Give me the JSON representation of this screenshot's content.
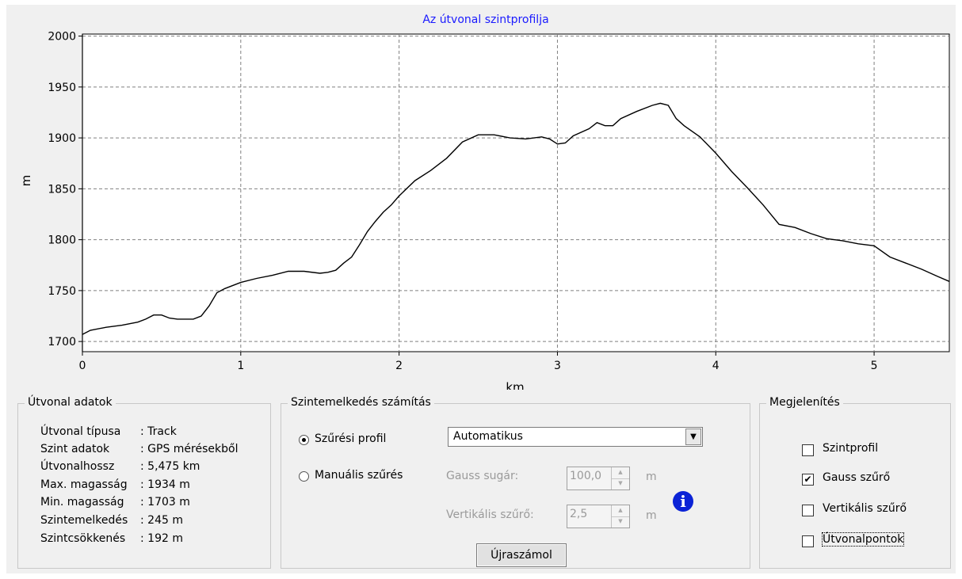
{
  "chart": {
    "title": "Az útvonal szintprofilja",
    "xlabel": "km",
    "ylabel": "m",
    "title_color": "#1a1aff"
  },
  "chart_data": {
    "type": "line",
    "title": "Az útvonal szintprofilja",
    "xlabel": "km",
    "ylabel": "m",
    "xlim": [
      0,
      5.475
    ],
    "ylim": [
      1690,
      2002
    ],
    "x_ticks": [
      "0",
      "1",
      "2",
      "3",
      "4",
      "5"
    ],
    "y_ticks": [
      "1700",
      "1750",
      "1800",
      "1850",
      "1900",
      "1950",
      "2000"
    ],
    "grid": true,
    "series": [
      {
        "color": "#000000",
        "x": [
          0,
          0.05,
          0.15,
          0.25,
          0.35,
          0.4,
          0.45,
          0.5,
          0.55,
          0.6,
          0.7,
          0.75,
          0.8,
          0.85,
          0.9,
          1.0,
          1.1,
          1.2,
          1.3,
          1.4,
          1.5,
          1.55,
          1.6,
          1.65,
          1.7,
          1.75,
          1.8,
          1.85,
          1.9,
          1.95,
          2.0,
          2.1,
          2.2,
          2.3,
          2.4,
          2.5,
          2.6,
          2.7,
          2.8,
          2.9,
          2.95,
          3.0,
          3.05,
          3.1,
          3.2,
          3.25,
          3.3,
          3.35,
          3.4,
          3.5,
          3.6,
          3.65,
          3.7,
          3.75,
          3.8,
          3.9,
          4.0,
          4.1,
          4.2,
          4.3,
          4.4,
          4.5,
          4.6,
          4.7,
          4.8,
          4.9,
          5.0,
          5.1,
          5.2,
          5.3,
          5.4,
          5.475
        ],
        "y": [
          1707,
          1711,
          1714,
          1716,
          1719,
          1722,
          1726,
          1726,
          1723,
          1722,
          1722,
          1725,
          1735,
          1748,
          1752,
          1758,
          1762,
          1765,
          1769,
          1769,
          1767,
          1768,
          1770,
          1777,
          1783,
          1795,
          1808,
          1818,
          1827,
          1834,
          1843,
          1858,
          1868,
          1880,
          1896,
          1903,
          1903,
          1900,
          1899,
          1901,
          1899,
          1894,
          1895,
          1902,
          1909,
          1915,
          1912,
          1912,
          1919,
          1926,
          1932,
          1934,
          1932,
          1919,
          1912,
          1901,
          1885,
          1867,
          1851,
          1834,
          1815,
          1812,
          1806,
          1801,
          1799,
          1796,
          1794,
          1783,
          1777,
          1771,
          1764,
          1759
        ]
      }
    ]
  },
  "utvonal_adatok": {
    "title": "Útvonal adatok",
    "rows": [
      {
        "key": "Útvonal típusa",
        "value": ": Track"
      },
      {
        "key": "Szint adatok",
        "value": ": GPS mérésekből"
      },
      {
        "key": "Útvonalhossz",
        "value": ": 5,475 km"
      },
      {
        "key": "Max. magasság",
        "value": ": 1934 m"
      },
      {
        "key": "Min. magasság",
        "value": ": 1703 m"
      },
      {
        "key": "Szintemelkedés",
        "value": ": 245 m"
      },
      {
        "key": "Szintcsökkenés",
        "value": ": 192 m"
      }
    ]
  },
  "szintemelkedes": {
    "title": "Szintemelkedés számítás",
    "radio_profile_label": "Szűrési profil",
    "radio_manual_label": "Manuális szűrés",
    "radio_selected": "Szűrési profil",
    "profile_select_value": "Automatikus",
    "gauss_label": "Gauss sugár:",
    "gauss_value": "100,0",
    "gauss_unit": "m",
    "vertical_label": "Vertikális szűrő:",
    "vertical_value": "2,5",
    "vertical_unit": "m",
    "recalc_button": "Újraszámol",
    "info_icon_color": "#0b23d6"
  },
  "megjelenites": {
    "title": "Megjelenítés",
    "items": [
      {
        "label": "Szintprofil",
        "checked": false
      },
      {
        "label": "Gauss szűrő",
        "checked": true
      },
      {
        "label": "Vertikális szűrő",
        "checked": false
      },
      {
        "label": "Útvonalpontok",
        "checked": false
      }
    ]
  }
}
